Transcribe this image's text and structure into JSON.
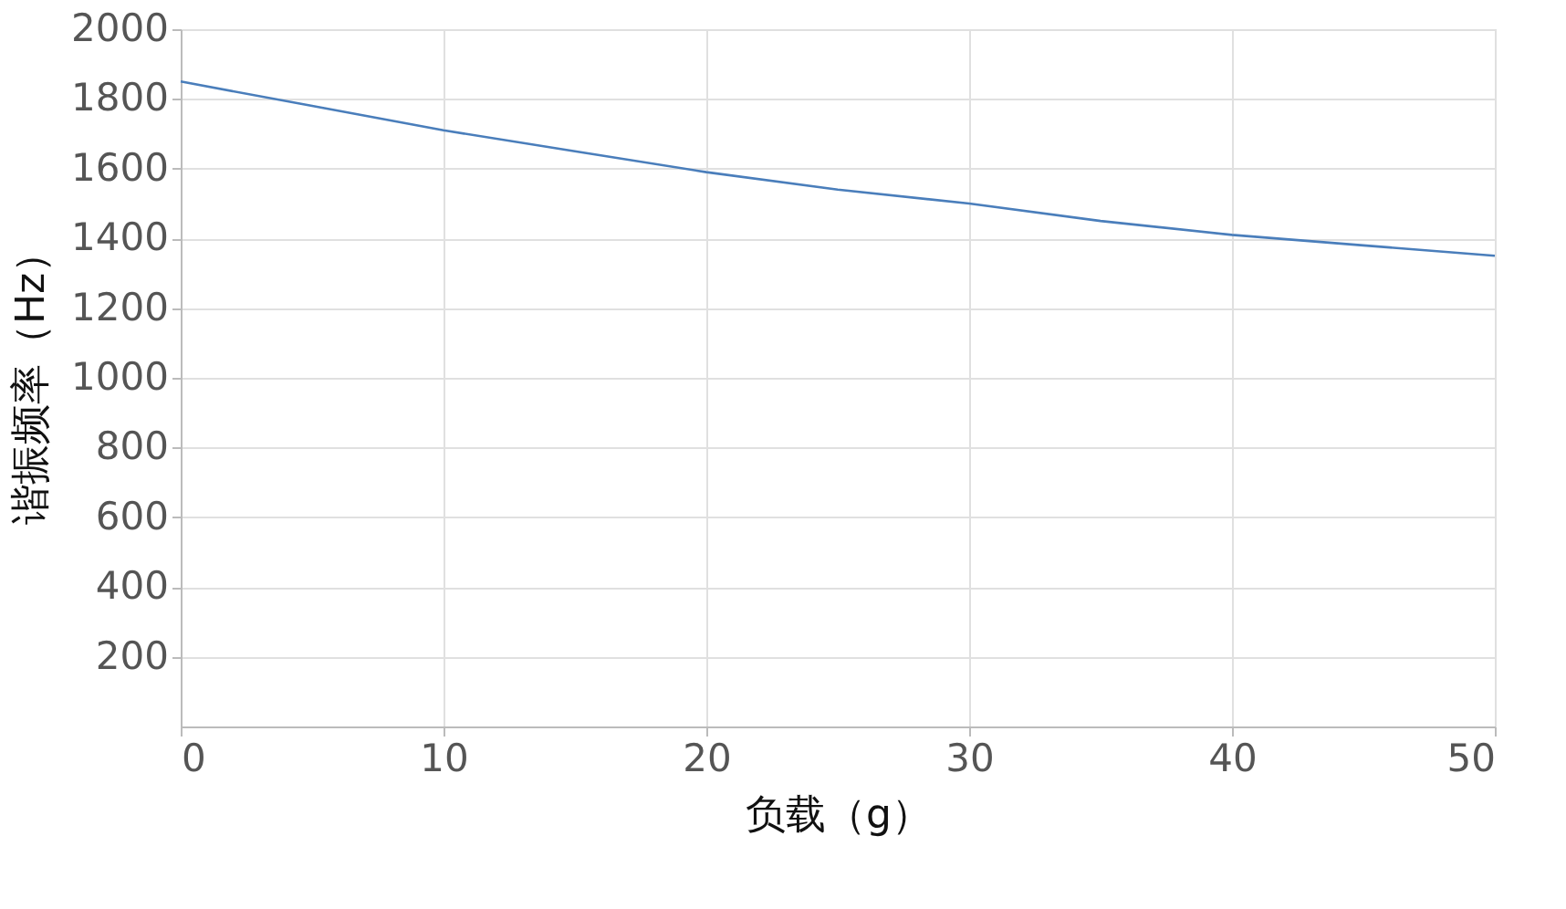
{
  "chart_data": {
    "type": "line",
    "xlabel": "负载（g）",
    "ylabel": "谐振频率（Hz）",
    "x": [
      0,
      5,
      10,
      15,
      20,
      25,
      30,
      35,
      40,
      45,
      50
    ],
    "series": [
      {
        "color": "#4a7ebb",
        "values": [
          1850,
          1780,
          1710,
          1650,
          1590,
          1540,
          1500,
          1450,
          1410,
          1380,
          1350
        ]
      }
    ],
    "xlim": [
      0,
      50
    ],
    "xticks": [
      0,
      10,
      20,
      30,
      40,
      50
    ],
    "ylim": [
      0,
      2000
    ],
    "yticks": [
      200,
      400,
      600,
      800,
      1000,
      1200,
      1400,
      1600,
      1800,
      2000
    ],
    "grid": true,
    "marker": "none",
    "line_style": "solid"
  }
}
